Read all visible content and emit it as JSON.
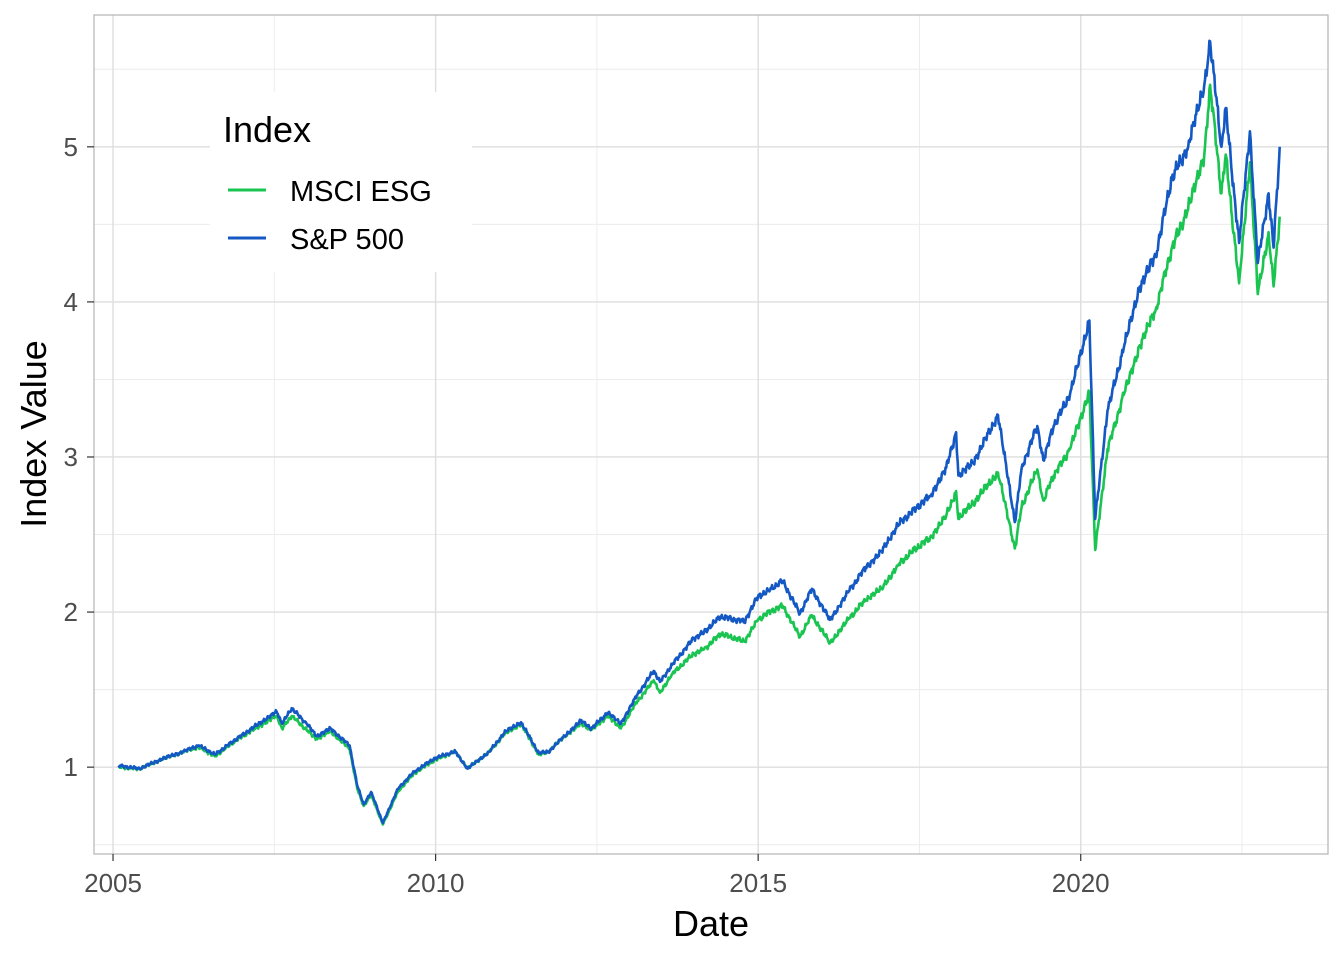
{
  "chart_data": {
    "type": "line",
    "xlabel": "Date",
    "ylabel": "Index Value",
    "x_ticks": [
      "2005",
      "2010",
      "2015",
      "2020"
    ],
    "y_ticks": [
      "1",
      "2",
      "3",
      "4",
      "5"
    ],
    "xlim": [
      "2004-09-15",
      "2023-11-01"
    ],
    "ylim": [
      0.44,
      5.85
    ],
    "grid": true,
    "legend": {
      "title": "Index",
      "placement": "top-left",
      "entries": [
        "MSCI ESG",
        "S&P 500"
      ]
    },
    "series": [
      {
        "name": "MSCI ESG",
        "color": "#1ac450",
        "x": [
          "2005-02-01",
          "2005-06-01",
          "2005-10-01",
          "2006-02-01",
          "2006-05-01",
          "2006-08-01",
          "2006-11-01",
          "2007-02-01",
          "2007-05-01",
          "2007-07-15",
          "2007-08-15",
          "2007-10-09",
          "2008-01-01",
          "2008-03-01",
          "2008-05-15",
          "2008-09-01",
          "2008-10-15",
          "2008-11-20",
          "2009-01-01",
          "2009-03-09",
          "2009-06-01",
          "2009-09-01",
          "2010-01-01",
          "2010-04-23",
          "2010-07-01",
          "2010-11-01",
          "2011-02-01",
          "2011-04-29",
          "2011-08-08",
          "2011-10-03",
          "2012-01-01",
          "2012-04-01",
          "2012-06-01",
          "2012-09-01",
          "2012-11-15",
          "2013-02-01",
          "2013-05-20",
          "2013-06-24",
          "2013-09-01",
          "2013-12-31",
          "2014-03-01",
          "2014-06-01",
          "2014-10-15",
          "2014-12-31",
          "2015-03-01",
          "2015-05-20",
          "2015-08-25",
          "2015-11-01",
          "2016-02-11",
          "2016-06-01",
          "2016-09-01",
          "2016-12-01",
          "2017-03-01",
          "2017-06-01",
          "2017-09-01",
          "2017-12-01",
          "2018-01-26",
          "2018-02-08",
          "2018-05-01",
          "2018-09-20",
          "2018-12-24",
          "2019-02-01",
          "2019-04-30",
          "2019-06-03",
          "2019-08-01",
          "2019-11-01",
          "2020-02-19",
          "2020-03-23",
          "2020-06-01",
          "2020-09-01",
          "2020-12-01",
          "2021-03-01",
          "2021-06-01",
          "2021-09-01",
          "2021-12-01",
          "2022-01-03",
          "2022-03-08",
          "2022-04-01",
          "2022-06-16",
          "2022-08-16",
          "2022-09-30",
          "2022-11-30",
          "2022-12-28",
          "2023-02-01"
        ],
        "values": [
          1.0,
          0.99,
          1.05,
          1.1,
          1.13,
          1.07,
          1.15,
          1.22,
          1.28,
          1.33,
          1.25,
          1.33,
          1.24,
          1.18,
          1.23,
          1.12,
          0.86,
          0.75,
          0.82,
          0.63,
          0.84,
          0.96,
          1.05,
          1.1,
          0.99,
          1.1,
          1.22,
          1.28,
          1.08,
          1.1,
          1.2,
          1.28,
          1.24,
          1.33,
          1.25,
          1.4,
          1.56,
          1.48,
          1.6,
          1.73,
          1.76,
          1.86,
          1.81,
          1.95,
          2.0,
          2.04,
          1.84,
          1.98,
          1.8,
          1.96,
          2.08,
          2.15,
          2.3,
          2.4,
          2.48,
          2.62,
          2.78,
          2.6,
          2.7,
          2.9,
          2.41,
          2.68,
          2.92,
          2.72,
          2.88,
          3.05,
          3.42,
          2.4,
          3.05,
          3.4,
          3.72,
          3.95,
          4.35,
          4.6,
          4.95,
          5.4,
          4.7,
          4.95,
          4.12,
          4.9,
          4.05,
          4.45,
          4.1,
          4.55
        ]
      },
      {
        "name": "S&P 500",
        "color": "#1458c4",
        "x": [
          "2005-02-01",
          "2005-06-01",
          "2005-10-01",
          "2006-02-01",
          "2006-05-01",
          "2006-08-01",
          "2006-11-01",
          "2007-02-01",
          "2007-05-01",
          "2007-07-15",
          "2007-08-15",
          "2007-10-09",
          "2008-01-01",
          "2008-03-01",
          "2008-05-15",
          "2008-09-01",
          "2008-10-15",
          "2008-11-20",
          "2009-01-01",
          "2009-03-09",
          "2009-06-01",
          "2009-09-01",
          "2010-01-01",
          "2010-04-23",
          "2010-07-01",
          "2010-11-01",
          "2011-02-01",
          "2011-04-29",
          "2011-08-08",
          "2011-10-03",
          "2012-01-01",
          "2012-04-01",
          "2012-06-01",
          "2012-09-01",
          "2012-11-15",
          "2013-02-01",
          "2013-05-20",
          "2013-06-24",
          "2013-09-01",
          "2013-12-31",
          "2014-03-01",
          "2014-06-01",
          "2014-10-15",
          "2014-12-31",
          "2015-03-01",
          "2015-05-20",
          "2015-08-25",
          "2015-11-01",
          "2016-02-11",
          "2016-06-01",
          "2016-09-01",
          "2016-12-01",
          "2017-03-01",
          "2017-06-01",
          "2017-09-01",
          "2017-12-01",
          "2018-01-26",
          "2018-02-08",
          "2018-05-01",
          "2018-09-20",
          "2018-12-24",
          "2019-02-01",
          "2019-04-30",
          "2019-06-03",
          "2019-08-01",
          "2019-11-01",
          "2020-02-19",
          "2020-03-23",
          "2020-06-01",
          "2020-09-01",
          "2020-12-01",
          "2021-03-01",
          "2021-06-01",
          "2021-09-01",
          "2021-12-01",
          "2022-01-03",
          "2022-03-08",
          "2022-04-01",
          "2022-06-16",
          "2022-08-16",
          "2022-09-30",
          "2022-11-30",
          "2022-12-28",
          "2023-02-01"
        ],
        "values": [
          1.01,
          0.99,
          1.05,
          1.1,
          1.14,
          1.08,
          1.16,
          1.23,
          1.3,
          1.36,
          1.28,
          1.38,
          1.28,
          1.2,
          1.25,
          1.14,
          0.88,
          0.76,
          0.84,
          0.64,
          0.86,
          0.97,
          1.06,
          1.1,
          0.99,
          1.1,
          1.23,
          1.29,
          1.09,
          1.1,
          1.2,
          1.3,
          1.25,
          1.35,
          1.28,
          1.44,
          1.62,
          1.55,
          1.66,
          1.83,
          1.87,
          1.97,
          1.94,
          2.1,
          2.14,
          2.2,
          1.99,
          2.15,
          1.95,
          2.14,
          2.29,
          2.39,
          2.56,
          2.66,
          2.75,
          2.93,
          3.16,
          2.88,
          2.96,
          3.27,
          2.58,
          2.93,
          3.2,
          2.98,
          3.2,
          3.4,
          3.88,
          2.6,
          3.3,
          3.7,
          4.1,
          4.3,
          4.8,
          5.0,
          5.4,
          5.68,
          5.0,
          5.25,
          4.38,
          5.1,
          4.25,
          4.7,
          4.35,
          5.0
        ]
      }
    ]
  }
}
